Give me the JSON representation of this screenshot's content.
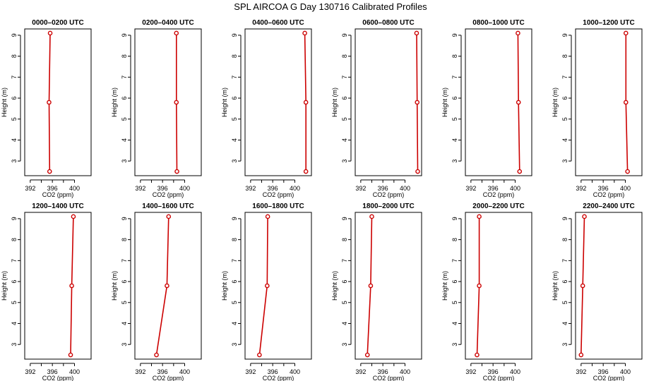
{
  "page": {
    "title": "SPL AIRCOA G  Day 130716  Calibrated Profiles"
  },
  "style": {
    "line_color": "#cc0000",
    "axis_color": "#000000"
  },
  "chart_data": [
    {
      "type": "line",
      "title": "0000–0200 UTC",
      "xlabel": "CO2 (ppm)",
      "ylabel": "Height (m)",
      "xlim": [
        391,
        403
      ],
      "ylim": [
        2.3,
        9.3
      ],
      "xticks": [
        392,
        396,
        400
      ],
      "yticks": [
        3,
        4,
        5,
        6,
        7,
        8,
        9
      ],
      "series": [
        {
          "x": [
            395.6,
            395.4,
            395.5
          ],
          "y": [
            9.1,
            5.8,
            2.5
          ]
        }
      ]
    },
    {
      "type": "line",
      "title": "0200–0400 UTC",
      "xlabel": "CO2 (ppm)",
      "ylabel": "Height (m)",
      "xlim": [
        391,
        403
      ],
      "ylim": [
        2.3,
        9.3
      ],
      "xticks": [
        392,
        396,
        400
      ],
      "yticks": [
        3,
        4,
        5,
        6,
        7,
        8,
        9
      ],
      "series": [
        {
          "x": [
            398.5,
            398.5,
            398.6
          ],
          "y": [
            9.1,
            5.8,
            2.5
          ]
        }
      ]
    },
    {
      "type": "line",
      "title": "0400–0600 UTC",
      "xlabel": "CO2 (ppm)",
      "ylabel": "Height (m)",
      "xlim": [
        391,
        403
      ],
      "ylim": [
        2.3,
        9.3
      ],
      "xticks": [
        392,
        396,
        400
      ],
      "yticks": [
        3,
        4,
        5,
        6,
        7,
        8,
        9
      ],
      "series": [
        {
          "x": [
            401.8,
            402.0,
            402.0
          ],
          "y": [
            9.1,
            5.8,
            2.5
          ]
        }
      ]
    },
    {
      "type": "line",
      "title": "0600–0800 UTC",
      "xlabel": "CO2 (ppm)",
      "ylabel": "Height (m)",
      "xlim": [
        391,
        403
      ],
      "ylim": [
        2.3,
        9.3
      ],
      "xticks": [
        392,
        396,
        400
      ],
      "yticks": [
        3,
        4,
        5,
        6,
        7,
        8,
        9
      ],
      "series": [
        {
          "x": [
            402.1,
            402.2,
            402.3
          ],
          "y": [
            9.1,
            5.8,
            2.5
          ]
        }
      ]
    },
    {
      "type": "line",
      "title": "0800–1000 UTC",
      "xlabel": "CO2 (ppm)",
      "ylabel": "Height (m)",
      "xlim": [
        391,
        403
      ],
      "ylim": [
        2.3,
        9.3
      ],
      "xticks": [
        392,
        396,
        400
      ],
      "yticks": [
        3,
        4,
        5,
        6,
        7,
        8,
        9
      ],
      "series": [
        {
          "x": [
            400.5,
            400.6,
            400.8
          ],
          "y": [
            9.1,
            5.8,
            2.5
          ]
        }
      ]
    },
    {
      "type": "line",
      "title": "1000–1200 UTC",
      "xlabel": "CO2 (ppm)",
      "ylabel": "Height (m)",
      "xlim": [
        391,
        403
      ],
      "ylim": [
        2.3,
        9.3
      ],
      "xticks": [
        392,
        396,
        400
      ],
      "yticks": [
        3,
        4,
        5,
        6,
        7,
        8,
        9
      ],
      "series": [
        {
          "x": [
            400.1,
            400.1,
            400.4
          ],
          "y": [
            9.1,
            5.8,
            2.5
          ]
        }
      ]
    },
    {
      "type": "line",
      "title": "1200–1400 UTC",
      "xlabel": "CO2 (ppm)",
      "ylabel": "Height (m)",
      "xlim": [
        391,
        403
      ],
      "ylim": [
        2.3,
        9.3
      ],
      "xticks": [
        392,
        396,
        400
      ],
      "yticks": [
        3,
        4,
        5,
        6,
        7,
        8,
        9
      ],
      "series": [
        {
          "x": [
            399.8,
            399.5,
            399.3
          ],
          "y": [
            9.1,
            5.8,
            2.5
          ]
        }
      ]
    },
    {
      "type": "line",
      "title": "1400–1600 UTC",
      "xlabel": "CO2 (ppm)",
      "ylabel": "Height (m)",
      "xlim": [
        391,
        403
      ],
      "ylim": [
        2.3,
        9.3
      ],
      "xticks": [
        392,
        396,
        400
      ],
      "yticks": [
        3,
        4,
        5,
        6,
        7,
        8,
        9
      ],
      "series": [
        {
          "x": [
            397.1,
            396.8,
            394.9
          ],
          "y": [
            9.1,
            5.8,
            2.5
          ]
        }
      ]
    },
    {
      "type": "line",
      "title": "1600–1800 UTC",
      "xlabel": "CO2 (ppm)",
      "ylabel": "Height (m)",
      "xlim": [
        391,
        403
      ],
      "ylim": [
        2.3,
        9.3
      ],
      "xticks": [
        392,
        396,
        400
      ],
      "yticks": [
        3,
        4,
        5,
        6,
        7,
        8,
        9
      ],
      "series": [
        {
          "x": [
            395.1,
            395.0,
            393.6
          ],
          "y": [
            9.1,
            5.8,
            2.5
          ]
        }
      ]
    },
    {
      "type": "line",
      "title": "1800–2000 UTC",
      "xlabel": "CO2 (ppm)",
      "ylabel": "Height (m)",
      "xlim": [
        391,
        403
      ],
      "ylim": [
        2.3,
        9.3
      ],
      "xticks": [
        392,
        396,
        400
      ],
      "yticks": [
        3,
        4,
        5,
        6,
        7,
        8,
        9
      ],
      "series": [
        {
          "x": [
            394.0,
            393.8,
            393.2
          ],
          "y": [
            9.1,
            5.8,
            2.5
          ]
        }
      ]
    },
    {
      "type": "line",
      "title": "2000–2200 UTC",
      "xlabel": "CO2 (ppm)",
      "ylabel": "Height (m)",
      "xlim": [
        391,
        403
      ],
      "ylim": [
        2.3,
        9.3
      ],
      "xticks": [
        392,
        396,
        400
      ],
      "yticks": [
        3,
        4,
        5,
        6,
        7,
        8,
        9
      ],
      "series": [
        {
          "x": [
            393.5,
            393.5,
            393.1
          ],
          "y": [
            9.1,
            5.8,
            2.5
          ]
        }
      ]
    },
    {
      "type": "line",
      "title": "2200–2400 UTC",
      "xlabel": "CO2 (ppm)",
      "ylabel": "Height (m)",
      "xlim": [
        391,
        403
      ],
      "ylim": [
        2.3,
        9.3
      ],
      "xticks": [
        392,
        396,
        400
      ],
      "yticks": [
        3,
        4,
        5,
        6,
        7,
        8,
        9
      ],
      "series": [
        {
          "x": [
            392.6,
            392.3,
            392.0
          ],
          "y": [
            9.1,
            5.8,
            2.5
          ]
        }
      ]
    }
  ]
}
